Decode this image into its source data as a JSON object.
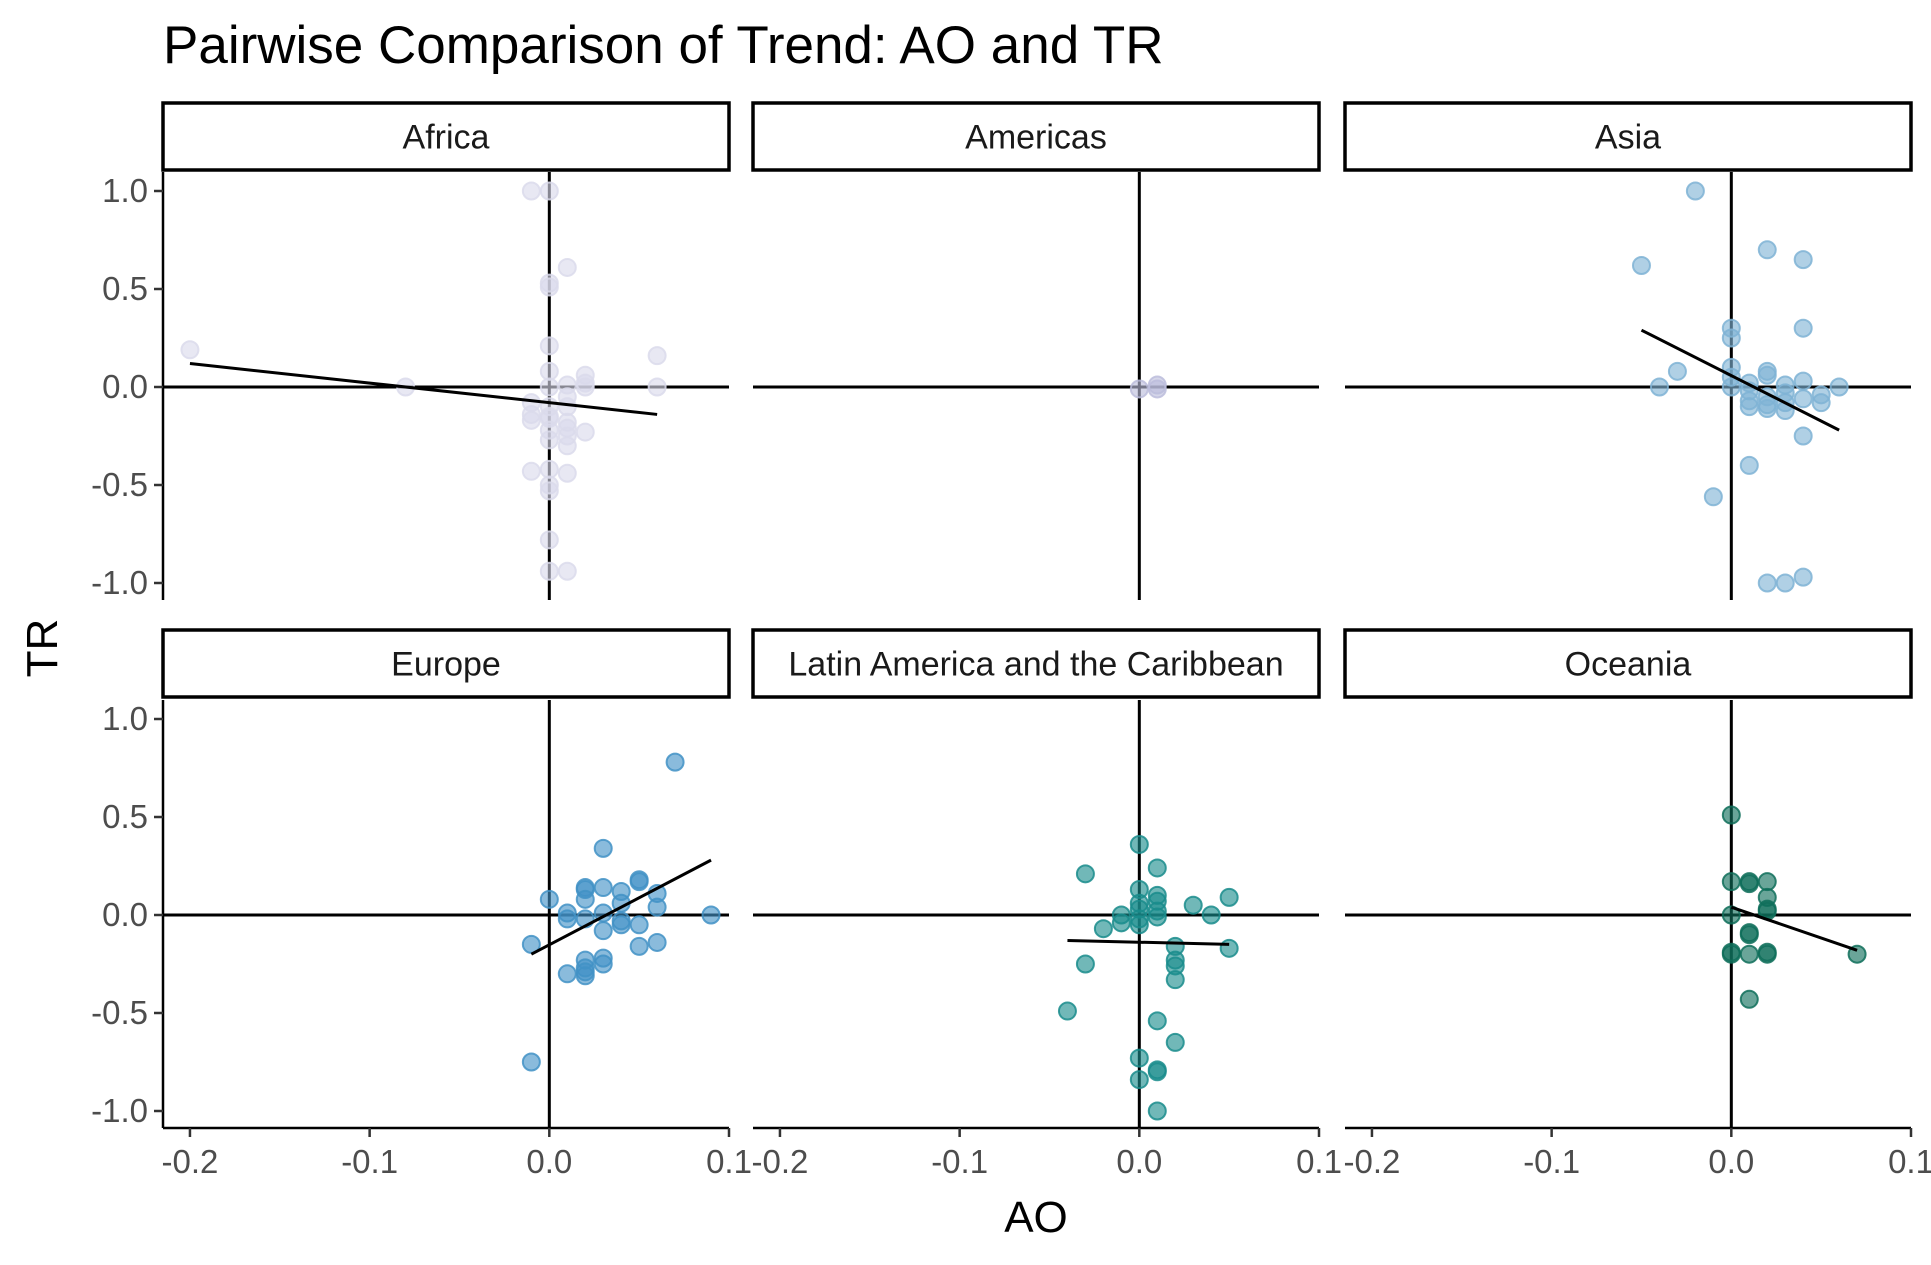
{
  "chart_data": {
    "type": "scatter",
    "title": "Pairwise Comparison of Trend: AO and TR",
    "xlabel": "AO",
    "ylabel": "TR",
    "xlim": [
      -0.215,
      0.1
    ],
    "ylim": [
      -1.1,
      1.1
    ],
    "x_ticks": [
      {
        "value": -0.2,
        "label": "-0.2"
      },
      {
        "value": -0.1,
        "label": "-0.1"
      },
      {
        "value": 0.0,
        "label": "0.0"
      },
      {
        "value": 0.1,
        "label": "0.1"
      }
    ],
    "y_ticks": [
      {
        "value": 1.0,
        "label": "1.0"
      },
      {
        "value": 0.5,
        "label": "0.5"
      },
      {
        "value": 0.0,
        "label": "0.0"
      },
      {
        "value": -0.5,
        "label": "-0.5"
      },
      {
        "value": -1.0,
        "label": "-1.0"
      }
    ],
    "reference_lines": {
      "x": 0,
      "y": 0
    },
    "grid": false,
    "legend": "none",
    "panels": [
      {
        "name": "Africa",
        "color": "#dadaeb",
        "fit": {
          "x": [
            -0.2,
            0.06
          ],
          "y": [
            0.12,
            -0.14
          ]
        },
        "points": [
          [
            -0.01,
            1.0
          ],
          [
            0.0,
            1.0
          ],
          [
            0.01,
            0.61
          ],
          [
            0.0,
            0.53
          ],
          [
            0.0,
            0.51
          ],
          [
            -0.2,
            0.19
          ],
          [
            0.0,
            0.21
          ],
          [
            0.06,
            0.16
          ],
          [
            0.0,
            0.08
          ],
          [
            0.02,
            0.06
          ],
          [
            0.02,
            0.02
          ],
          [
            0.01,
            0.01
          ],
          [
            0.02,
            0.0
          ],
          [
            -0.08,
            0.0
          ],
          [
            0.06,
            0.0
          ],
          [
            0.0,
            0.0
          ],
          [
            0.01,
            -0.05
          ],
          [
            -0.01,
            -0.08
          ],
          [
            0.0,
            -0.1
          ],
          [
            0.01,
            -0.1
          ],
          [
            -0.01,
            -0.14
          ],
          [
            0.0,
            -0.15
          ],
          [
            -0.01,
            -0.17
          ],
          [
            0.0,
            -0.16
          ],
          [
            0.01,
            -0.18
          ],
          [
            0.01,
            -0.21
          ],
          [
            0.0,
            -0.22
          ],
          [
            0.02,
            -0.23
          ],
          [
            0.01,
            -0.25
          ],
          [
            0.0,
            -0.27
          ],
          [
            0.01,
            -0.3
          ],
          [
            -0.01,
            -0.43
          ],
          [
            0.0,
            -0.42
          ],
          [
            0.01,
            -0.44
          ],
          [
            0.0,
            -0.5
          ],
          [
            0.0,
            -0.53
          ],
          [
            0.0,
            -0.78
          ],
          [
            0.0,
            -0.94
          ],
          [
            0.01,
            -0.94
          ]
        ]
      },
      {
        "name": "Americas",
        "color": "#bcbddc",
        "fit": null,
        "points": [
          [
            0.01,
            0.01
          ],
          [
            0.0,
            -0.01
          ],
          [
            0.01,
            -0.01
          ]
        ]
      },
      {
        "name": "Asia",
        "color": "#7fb3d5",
        "fit": {
          "x": [
            -0.05,
            0.06
          ],
          "y": [
            0.29,
            -0.22
          ]
        },
        "points": [
          [
            -0.02,
            1.0
          ],
          [
            0.02,
            0.7
          ],
          [
            0.04,
            0.65
          ],
          [
            -0.05,
            0.62
          ],
          [
            0.0,
            0.3
          ],
          [
            0.04,
            0.3
          ],
          [
            0.0,
            0.25
          ],
          [
            0.0,
            0.1
          ],
          [
            -0.03,
            0.08
          ],
          [
            0.02,
            0.08
          ],
          [
            0.02,
            0.06
          ],
          [
            0.0,
            0.05
          ],
          [
            0.04,
            0.03
          ],
          [
            0.01,
            0.02
          ],
          [
            0.03,
            0.01
          ],
          [
            -0.04,
            0.0
          ],
          [
            0.0,
            0.0
          ],
          [
            0.06,
            0.0
          ],
          [
            0.01,
            -0.02
          ],
          [
            0.03,
            -0.03
          ],
          [
            0.05,
            -0.04
          ],
          [
            0.02,
            -0.05
          ],
          [
            0.04,
            -0.06
          ],
          [
            0.01,
            -0.07
          ],
          [
            0.05,
            -0.08
          ],
          [
            0.03,
            -0.08
          ],
          [
            0.02,
            -0.09
          ],
          [
            0.01,
            -0.1
          ],
          [
            0.02,
            -0.11
          ],
          [
            0.03,
            -0.12
          ],
          [
            0.04,
            -0.25
          ],
          [
            0.01,
            -0.4
          ],
          [
            -0.01,
            -0.56
          ],
          [
            0.04,
            -0.97
          ],
          [
            0.02,
            -1.0
          ],
          [
            0.03,
            -1.0
          ]
        ]
      },
      {
        "name": "Europe",
        "color": "#4292c6",
        "fit": {
          "x": [
            -0.01,
            0.09
          ],
          "y": [
            -0.2,
            0.28
          ]
        },
        "points": [
          [
            0.07,
            0.78
          ],
          [
            0.03,
            0.34
          ],
          [
            0.05,
            0.18
          ],
          [
            0.05,
            0.17
          ],
          [
            0.02,
            0.14
          ],
          [
            0.02,
            0.13
          ],
          [
            0.03,
            0.14
          ],
          [
            0.04,
            0.12
          ],
          [
            0.06,
            0.11
          ],
          [
            0.0,
            0.08
          ],
          [
            0.02,
            0.08
          ],
          [
            0.04,
            0.06
          ],
          [
            0.06,
            0.04
          ],
          [
            0.01,
            0.01
          ],
          [
            0.09,
            0.0
          ],
          [
            0.03,
            0.01
          ],
          [
            0.01,
            -0.02
          ],
          [
            0.02,
            -0.02
          ],
          [
            0.04,
            -0.03
          ],
          [
            0.04,
            -0.05
          ],
          [
            0.05,
            -0.05
          ],
          [
            0.03,
            -0.08
          ],
          [
            -0.01,
            -0.15
          ],
          [
            0.05,
            -0.16
          ],
          [
            0.06,
            -0.14
          ],
          [
            0.02,
            -0.23
          ],
          [
            0.03,
            -0.22
          ],
          [
            0.02,
            -0.27
          ],
          [
            0.03,
            -0.25
          ],
          [
            0.01,
            -0.3
          ],
          [
            0.02,
            -0.29
          ],
          [
            0.02,
            -0.31
          ],
          [
            -0.01,
            -0.75
          ]
        ]
      },
      {
        "name": "Latin America and the Caribbean",
        "color": "#1a8c8c",
        "fit": {
          "x": [
            -0.04,
            0.05
          ],
          "y": [
            -0.13,
            -0.15
          ]
        },
        "points": [
          [
            0.0,
            0.36
          ],
          [
            0.01,
            0.24
          ],
          [
            -0.03,
            0.21
          ],
          [
            0.0,
            0.13
          ],
          [
            0.01,
            0.1
          ],
          [
            0.05,
            0.09
          ],
          [
            0.01,
            0.07
          ],
          [
            0.0,
            0.06
          ],
          [
            0.03,
            0.05
          ],
          [
            0.0,
            0.03
          ],
          [
            0.01,
            0.02
          ],
          [
            0.04,
            0.0
          ],
          [
            -0.01,
            0.0
          ],
          [
            0.01,
            -0.01
          ],
          [
            0.0,
            -0.02
          ],
          [
            -0.01,
            -0.04
          ],
          [
            0.0,
            -0.05
          ],
          [
            -0.02,
            -0.07
          ],
          [
            0.02,
            -0.16
          ],
          [
            0.05,
            -0.17
          ],
          [
            0.02,
            -0.23
          ],
          [
            0.02,
            -0.26
          ],
          [
            -0.03,
            -0.25
          ],
          [
            0.02,
            -0.33
          ],
          [
            -0.04,
            -0.49
          ],
          [
            0.01,
            -0.54
          ],
          [
            0.02,
            -0.65
          ],
          [
            0.0,
            -0.73
          ],
          [
            0.01,
            -0.79
          ],
          [
            0.01,
            -0.8
          ],
          [
            0.0,
            -0.84
          ],
          [
            0.01,
            -1.0
          ]
        ]
      },
      {
        "name": "Oceania",
        "color": "#0f6e5a",
        "fit": {
          "x": [
            0.0,
            0.07
          ],
          "y": [
            0.04,
            -0.18
          ]
        },
        "points": [
          [
            0.0,
            0.51
          ],
          [
            0.0,
            0.17
          ],
          [
            0.01,
            0.17
          ],
          [
            0.01,
            0.16
          ],
          [
            0.02,
            0.17
          ],
          [
            0.02,
            0.09
          ],
          [
            0.02,
            0.03
          ],
          [
            0.02,
            0.02
          ],
          [
            0.0,
            0.0
          ],
          [
            0.01,
            -0.1
          ],
          [
            0.01,
            -0.09
          ],
          [
            0.0,
            -0.2
          ],
          [
            0.0,
            -0.19
          ],
          [
            0.01,
            -0.2
          ],
          [
            0.02,
            -0.2
          ],
          [
            0.02,
            -0.19
          ],
          [
            0.07,
            -0.2
          ],
          [
            0.01,
            -0.43
          ]
        ]
      }
    ]
  }
}
